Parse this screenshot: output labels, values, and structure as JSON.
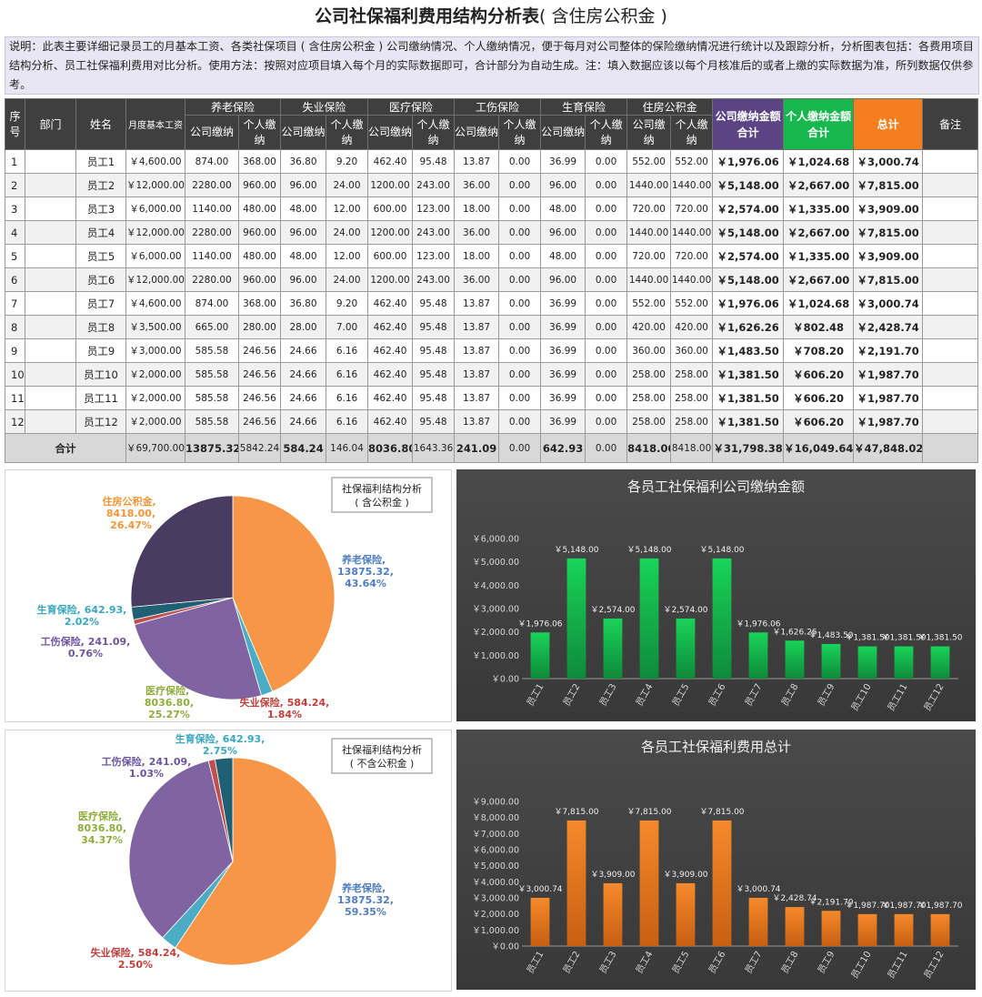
{
  "title": {
    "main": "公司社保福利费用结构分析表",
    "sub": "( 含住房公积金 )"
  },
  "description": "说明：此表主要详细记录员工的月基本工资、各类社保项目 ( 含住房公积金 ) 公司缴纳情况、个人缴纳情况，便于每月对公司整体的保险缴纳情况进行统计以及跟踪分析，分析图表包括：各费用项目结构分析、员工社保福利费用对比分析。使用方法：按照对应项目填入每个月的实际数据即可，合计部分为自动生成。注：填入数据应该以每个月核准后的或者上缴的实际数据为准，所列数据仅供参考。",
  "table": {
    "headers": {
      "seq": "序号",
      "dept": "部门",
      "name": "姓名",
      "salary": "月度基本工资",
      "groups": [
        "养老保险",
        "失业保险",
        "医疗保险",
        "工伤保险",
        "生育保险",
        "住房公积金"
      ],
      "company": "公司缴纳",
      "personal": "个人缴纳",
      "company_total": "公司缴纳金额合计",
      "personal_total": "个人缴纳金额合计",
      "total": "总计",
      "remark": "备注"
    },
    "rows": [
      {
        "seq": "1",
        "dept": "",
        "name": "员工1",
        "salary": "￥4,600.00",
        "v": [
          "874.00",
          "368.00",
          "36.80",
          "9.20",
          "462.40",
          "95.48",
          "13.87",
          "0.00",
          "36.99",
          "0.00",
          "552.00",
          "552.00"
        ],
        "company_total": "￥1,976.06",
        "personal_total": "￥1,024.68",
        "total": "￥3,000.74",
        "remark": ""
      },
      {
        "seq": "2",
        "dept": "",
        "name": "员工2",
        "salary": "￥12,000.00",
        "v": [
          "2280.00",
          "960.00",
          "96.00",
          "24.00",
          "1200.00",
          "243.00",
          "36.00",
          "0.00",
          "96.00",
          "0.00",
          "1440.00",
          "1440.00"
        ],
        "company_total": "￥5,148.00",
        "personal_total": "￥2,667.00",
        "total": "￥7,815.00",
        "remark": ""
      },
      {
        "seq": "3",
        "dept": "",
        "name": "员工3",
        "salary": "￥6,000.00",
        "v": [
          "1140.00",
          "480.00",
          "48.00",
          "12.00",
          "600.00",
          "123.00",
          "18.00",
          "0.00",
          "48.00",
          "0.00",
          "720.00",
          "720.00"
        ],
        "company_total": "￥2,574.00",
        "personal_total": "￥1,335.00",
        "total": "￥3,909.00",
        "remark": ""
      },
      {
        "seq": "4",
        "dept": "",
        "name": "员工4",
        "salary": "￥12,000.00",
        "v": [
          "2280.00",
          "960.00",
          "96.00",
          "24.00",
          "1200.00",
          "243.00",
          "36.00",
          "0.00",
          "96.00",
          "0.00",
          "1440.00",
          "1440.00"
        ],
        "company_total": "￥5,148.00",
        "personal_total": "￥2,667.00",
        "total": "￥7,815.00",
        "remark": ""
      },
      {
        "seq": "5",
        "dept": "",
        "name": "员工5",
        "salary": "￥6,000.00",
        "v": [
          "1140.00",
          "480.00",
          "48.00",
          "12.00",
          "600.00",
          "123.00",
          "18.00",
          "0.00",
          "48.00",
          "0.00",
          "720.00",
          "720.00"
        ],
        "company_total": "￥2,574.00",
        "personal_total": "￥1,335.00",
        "total": "￥3,909.00",
        "remark": ""
      },
      {
        "seq": "6",
        "dept": "",
        "name": "员工6",
        "salary": "￥12,000.00",
        "v": [
          "2280.00",
          "960.00",
          "96.00",
          "24.00",
          "1200.00",
          "243.00",
          "36.00",
          "0.00",
          "96.00",
          "0.00",
          "1440.00",
          "1440.00"
        ],
        "company_total": "￥5,148.00",
        "personal_total": "￥2,667.00",
        "total": "￥7,815.00",
        "remark": ""
      },
      {
        "seq": "7",
        "dept": "",
        "name": "员工7",
        "salary": "￥4,600.00",
        "v": [
          "874.00",
          "368.00",
          "36.80",
          "9.20",
          "462.40",
          "95.48",
          "13.87",
          "0.00",
          "36.99",
          "0.00",
          "552.00",
          "552.00"
        ],
        "company_total": "￥1,976.06",
        "personal_total": "￥1,024.68",
        "total": "￥3,000.74",
        "remark": ""
      },
      {
        "seq": "8",
        "dept": "",
        "name": "员工8",
        "salary": "￥3,500.00",
        "v": [
          "665.00",
          "280.00",
          "28.00",
          "7.00",
          "462.40",
          "95.48",
          "13.87",
          "0.00",
          "36.99",
          "0.00",
          "420.00",
          "420.00"
        ],
        "company_total": "￥1,626.26",
        "personal_total": "￥802.48",
        "total": "￥2,428.74",
        "remark": ""
      },
      {
        "seq": "9",
        "dept": "",
        "name": "员工9",
        "salary": "￥3,000.00",
        "v": [
          "585.58",
          "246.56",
          "24.66",
          "6.16",
          "462.40",
          "95.48",
          "13.87",
          "0.00",
          "36.99",
          "0.00",
          "360.00",
          "360.00"
        ],
        "company_total": "￥1,483.50",
        "personal_total": "￥708.20",
        "total": "￥2,191.70",
        "remark": ""
      },
      {
        "seq": "10",
        "dept": "",
        "name": "员工10",
        "salary": "￥2,000.00",
        "v": [
          "585.58",
          "246.56",
          "24.66",
          "6.16",
          "462.40",
          "95.48",
          "13.87",
          "0.00",
          "36.99",
          "0.00",
          "258.00",
          "258.00"
        ],
        "company_total": "￥1,381.50",
        "personal_total": "￥606.20",
        "total": "￥1,987.70",
        "remark": ""
      },
      {
        "seq": "11",
        "dept": "",
        "name": "员工11",
        "salary": "￥2,000.00",
        "v": [
          "585.58",
          "246.56",
          "24.66",
          "6.16",
          "462.40",
          "95.48",
          "13.87",
          "0.00",
          "36.99",
          "0.00",
          "258.00",
          "258.00"
        ],
        "company_total": "￥1,381.50",
        "personal_total": "￥606.20",
        "total": "￥1,987.70",
        "remark": ""
      },
      {
        "seq": "12",
        "dept": "",
        "name": "员工12",
        "salary": "￥2,000.00",
        "v": [
          "585.58",
          "246.56",
          "24.66",
          "6.16",
          "462.40",
          "95.48",
          "13.87",
          "0.00",
          "36.99",
          "0.00",
          "258.00",
          "258.00"
        ],
        "company_total": "￥1,381.50",
        "personal_total": "￥606.20",
        "total": "￥1,987.70",
        "remark": ""
      }
    ],
    "totals": {
      "label": "合计",
      "salary": "￥69,700.00",
      "v": [
        "13875.32",
        "5842.24",
        "584.24",
        "146.04",
        "8036.80",
        "1643.36",
        "241.09",
        "0.00",
        "642.93",
        "0.00",
        "8418.00",
        "8418.00"
      ],
      "company_total": "￥31,798.38",
      "personal_total": "￥16,049.64",
      "total": "￥47,848.02"
    }
  },
  "colors": {
    "pension": "#f79646",
    "unemployment": "#4bacc6",
    "medical": "#8064a2",
    "injury": "#c0504d",
    "maternity": "#1f6075",
    "housing": "#4a3b63",
    "green_bar": "#18d458",
    "orange_bar": "#f6892a"
  },
  "chart_data": [
    {
      "type": "pie",
      "title": "社保福利结构分析 ( 含公积金 )",
      "title_lines": [
        "社保福利结构分析",
        "( 含公积金 )"
      ],
      "slices": [
        {
          "label": "养老保险",
          "value": 13875.32,
          "value_text": "13875.32",
          "percent": "43.64%",
          "color_key": "pension"
        },
        {
          "label": "失业保险",
          "value": 584.24,
          "value_text": "584.24",
          "percent": "1.84%",
          "color_key": "unemployment"
        },
        {
          "label": "医疗保险",
          "value": 8036.8,
          "value_text": "8036.80",
          "percent": "25.27%",
          "color_key": "medical"
        },
        {
          "label": "工伤保险",
          "value": 241.09,
          "value_text": "241.09",
          "percent": "0.76%",
          "color_key": "injury"
        },
        {
          "label": "生育保险",
          "value": 642.93,
          "value_text": "642.93",
          "percent": "2.02%",
          "color_key": "maternity"
        },
        {
          "label": "住房公积金",
          "value": 8418.0,
          "value_text": "8418.00",
          "percent": "26.47%",
          "color_key": "housing"
        }
      ]
    },
    {
      "type": "bar",
      "title": "各员工社保福利公司缴纳金额",
      "categories": [
        "员工1",
        "员工2",
        "员工3",
        "员工4",
        "员工5",
        "员工6",
        "员工7",
        "员工8",
        "员工9",
        "员工10",
        "员工11",
        "员工12"
      ],
      "values": [
        1976.06,
        5148.0,
        2574.0,
        5148.0,
        2574.0,
        5148.0,
        1976.06,
        1626.26,
        1483.5,
        1381.5,
        1381.5,
        1381.5
      ],
      "value_labels": [
        "￥1,976.06",
        "￥5,148.00",
        "￥2,574.00",
        "￥5,148.00",
        "￥2,574.00",
        "￥5,148.00",
        "￥1,976.06",
        "￥1,626.26",
        "￥1,483.50",
        "￥1,381.50",
        "￥1,381.50",
        "￥1,381.50"
      ],
      "ylim": [
        0,
        6000
      ],
      "yticks": [
        "￥0.00",
        "￥1,000.00",
        "￥2,000.00",
        "￥3,000.00",
        "￥4,000.00",
        "￥5,000.00",
        "￥6,000.00"
      ],
      "grid": false,
      "color_key": "green_bar"
    },
    {
      "type": "pie",
      "title": "社保福利结构分析 ( 不含公积金 )",
      "title_lines": [
        "社保福利结构分析",
        "( 不含公积金 )"
      ],
      "slices": [
        {
          "label": "养老保险",
          "value": 13875.32,
          "value_text": "13875.32",
          "percent": "59.35%",
          "color_key": "pension"
        },
        {
          "label": "失业保险",
          "value": 584.24,
          "value_text": "584.24",
          "percent": "2.50%",
          "color_key": "unemployment"
        },
        {
          "label": "医疗保险",
          "value": 8036.8,
          "value_text": "8036.80",
          "percent": "34.37%",
          "color_key": "medical"
        },
        {
          "label": "工伤保险",
          "value": 241.09,
          "value_text": "241.09",
          "percent": "1.03%",
          "color_key": "injury"
        },
        {
          "label": "生育保险",
          "value": 642.93,
          "value_text": "642.93",
          "percent": "2.75%",
          "color_key": "maternity"
        }
      ]
    },
    {
      "type": "bar",
      "title": "各员工社保福利费用总计",
      "categories": [
        "员工1",
        "员工2",
        "员工3",
        "员工4",
        "员工5",
        "员工6",
        "员工7",
        "员工8",
        "员工9",
        "员工10",
        "员工11",
        "员工12"
      ],
      "values": [
        3000.74,
        7815.0,
        3909.0,
        7815.0,
        3909.0,
        7815.0,
        3000.74,
        2428.74,
        2191.7,
        1987.7,
        1987.7,
        1987.7
      ],
      "value_labels": [
        "￥3,000.74",
        "￥7,815.00",
        "￥3,909.00",
        "￥7,815.00",
        "￥3,909.00",
        "￥7,815.00",
        "￥3,000.74",
        "￥2,428.74",
        "￥2,191.70",
        "￥1,987.70",
        "￥1,987.70",
        "￥1,987.70"
      ],
      "ylim": [
        0,
        9000
      ],
      "yticks": [
        "￥0.00",
        "￥1,000.00",
        "￥2,000.00",
        "￥3,000.00",
        "￥4,000.00",
        "￥5,000.00",
        "￥6,000.00",
        "￥7,000.00",
        "￥8,000.00",
        "￥9,000.00"
      ],
      "grid": false,
      "color_key": "orange_bar"
    }
  ]
}
